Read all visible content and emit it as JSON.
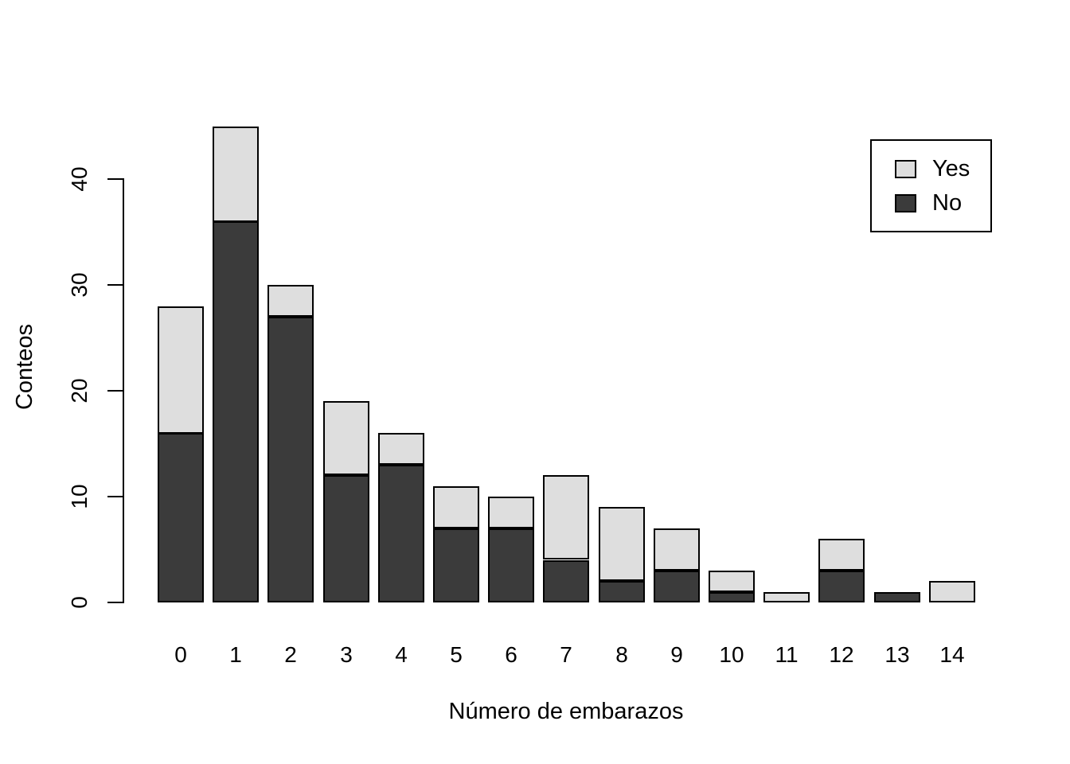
{
  "chart_data": {
    "type": "bar",
    "stacked": true,
    "title": "",
    "xlabel": "Número de embarazos",
    "ylabel": "Conteos",
    "categories": [
      "0",
      "1",
      "2",
      "3",
      "4",
      "5",
      "6",
      "7",
      "8",
      "9",
      "10",
      "11",
      "12",
      "13",
      "14"
    ],
    "series": [
      {
        "name": "Yes",
        "color": "#dedede",
        "values": [
          12,
          9,
          3,
          7,
          3,
          4,
          3,
          8,
          7,
          4,
          2,
          1,
          3,
          0,
          2
        ]
      },
      {
        "name": "No",
        "color": "#3b3b3b",
        "values": [
          16,
          36,
          27,
          12,
          13,
          7,
          7,
          4,
          2,
          3,
          1,
          0,
          3,
          1,
          0
        ]
      }
    ],
    "stack_order_bottom_to_top": [
      "No",
      "Yes"
    ],
    "totals": [
      28,
      45,
      30,
      19,
      16,
      11,
      10,
      12,
      9,
      7,
      3,
      1,
      6,
      1,
      2
    ],
    "y_ticks": [
      0,
      10,
      20,
      30,
      40
    ],
    "ylim": [
      0,
      45
    ],
    "grid": false,
    "bar_border_color": "#000000",
    "axis_color": "#000000",
    "background_color": "#ffffff",
    "legend": {
      "position": "top-right",
      "entries": [
        "Yes",
        "No"
      ]
    }
  }
}
